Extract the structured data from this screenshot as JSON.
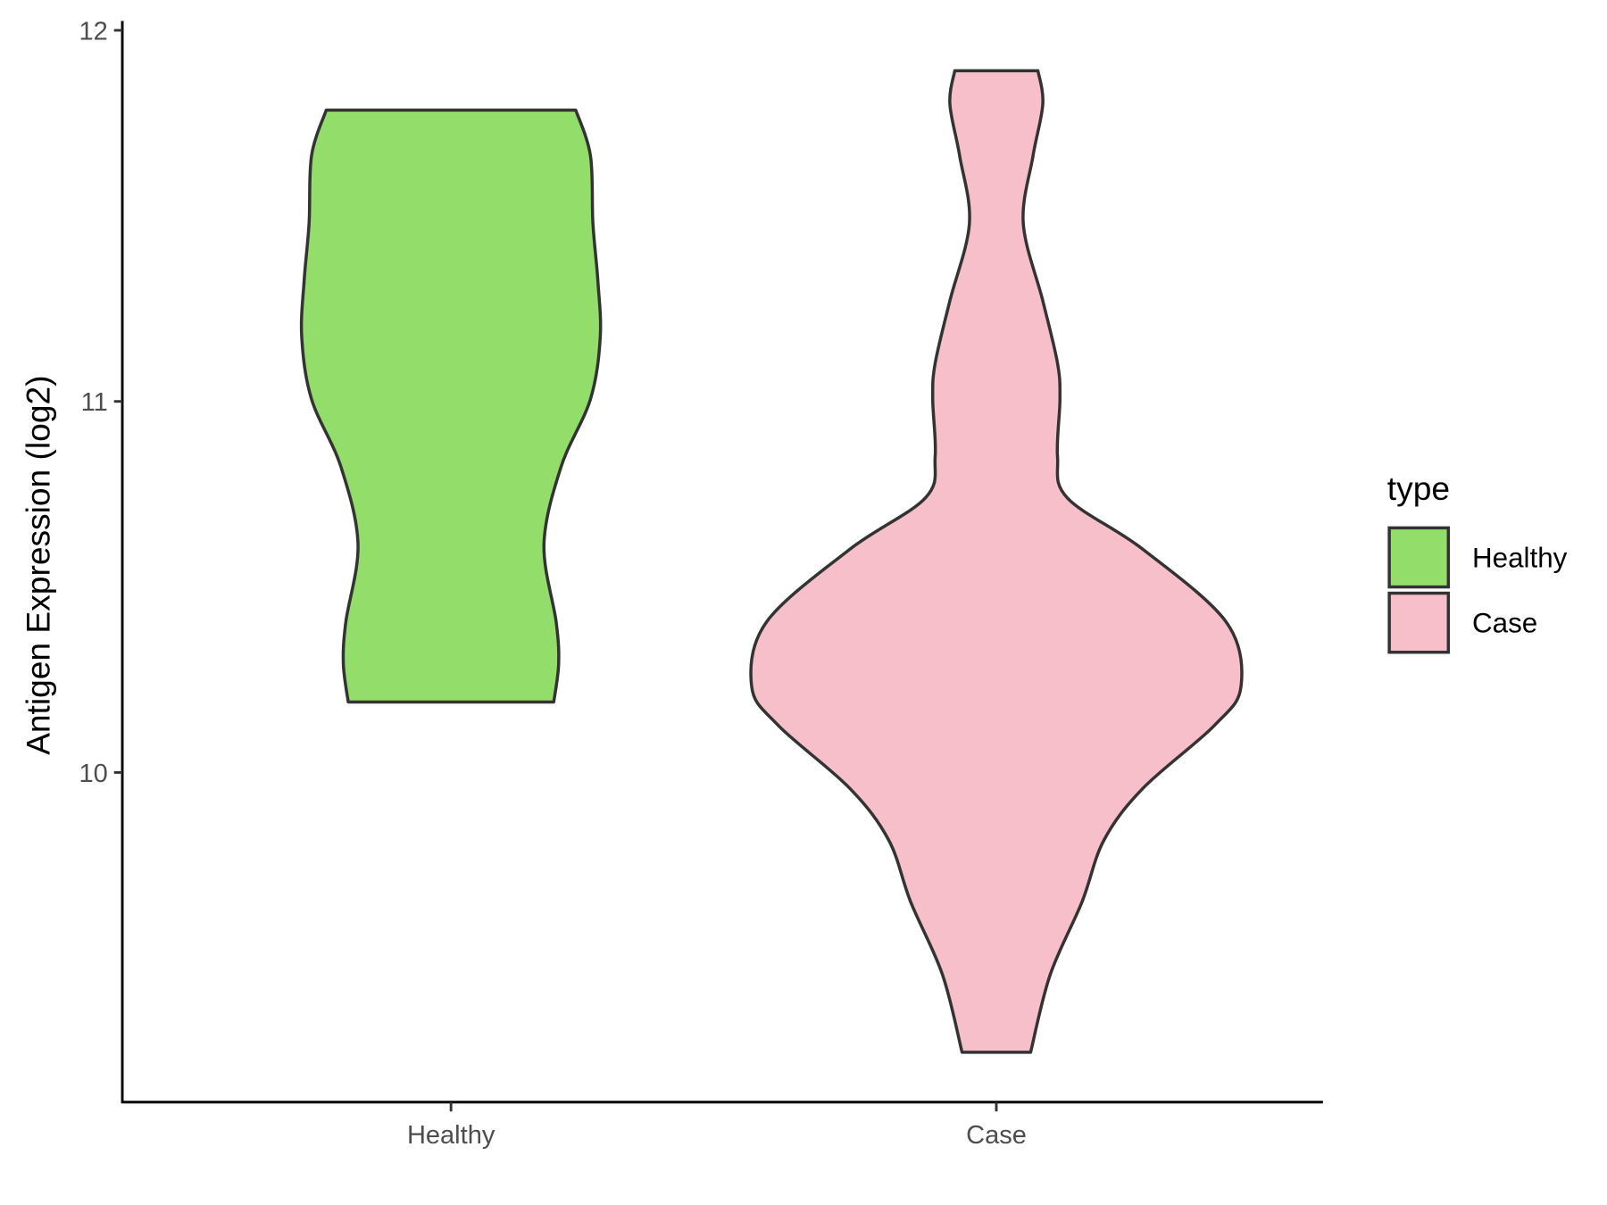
{
  "chart_data": {
    "type": "violin",
    "ylabel": "Antigen Expression (log2)",
    "xlabel": "",
    "categories": [
      "Healthy",
      "Case"
    ],
    "y_ticks": [
      "10",
      "11",
      "12"
    ],
    "ylim": [
      9.15,
      12.02
    ],
    "grid": false,
    "legend": {
      "title": "type",
      "placement": "right",
      "entries": [
        "Healthy",
        "Case"
      ]
    },
    "colors": {
      "Healthy": "#93dd6a",
      "Case": "#f7bfca",
      "outline": "#333333"
    },
    "series": [
      {
        "name": "Healthy",
        "min": 10.19,
        "max": 11.785,
        "profile": [
          [
            11.785,
            0.51
          ],
          [
            11.662,
            0.57
          ],
          [
            11.48,
            0.58
          ],
          [
            11.327,
            0.6
          ],
          [
            11.173,
            0.61
          ],
          [
            11.006,
            0.57
          ],
          [
            10.824,
            0.45
          ],
          [
            10.615,
            0.38
          ],
          [
            10.405,
            0.43
          ],
          [
            10.293,
            0.44
          ],
          [
            10.19,
            0.42
          ]
        ]
      },
      {
        "name": "Case",
        "min": 9.246,
        "max": 11.891,
        "profile": [
          [
            11.891,
            0.17
          ],
          [
            11.802,
            0.19
          ],
          [
            11.662,
            0.15
          ],
          [
            11.48,
            0.11
          ],
          [
            11.271,
            0.19
          ],
          [
            11.103,
            0.25
          ],
          [
            11.006,
            0.26
          ],
          [
            10.852,
            0.25
          ],
          [
            10.74,
            0.29
          ],
          [
            10.601,
            0.6
          ],
          [
            10.405,
            0.94
          ],
          [
            10.232,
            1.0
          ],
          [
            10.126,
            0.89
          ],
          [
            9.958,
            0.6
          ],
          [
            9.818,
            0.44
          ],
          [
            9.651,
            0.35
          ],
          [
            9.455,
            0.22
          ],
          [
            9.246,
            0.14
          ]
        ]
      }
    ]
  }
}
